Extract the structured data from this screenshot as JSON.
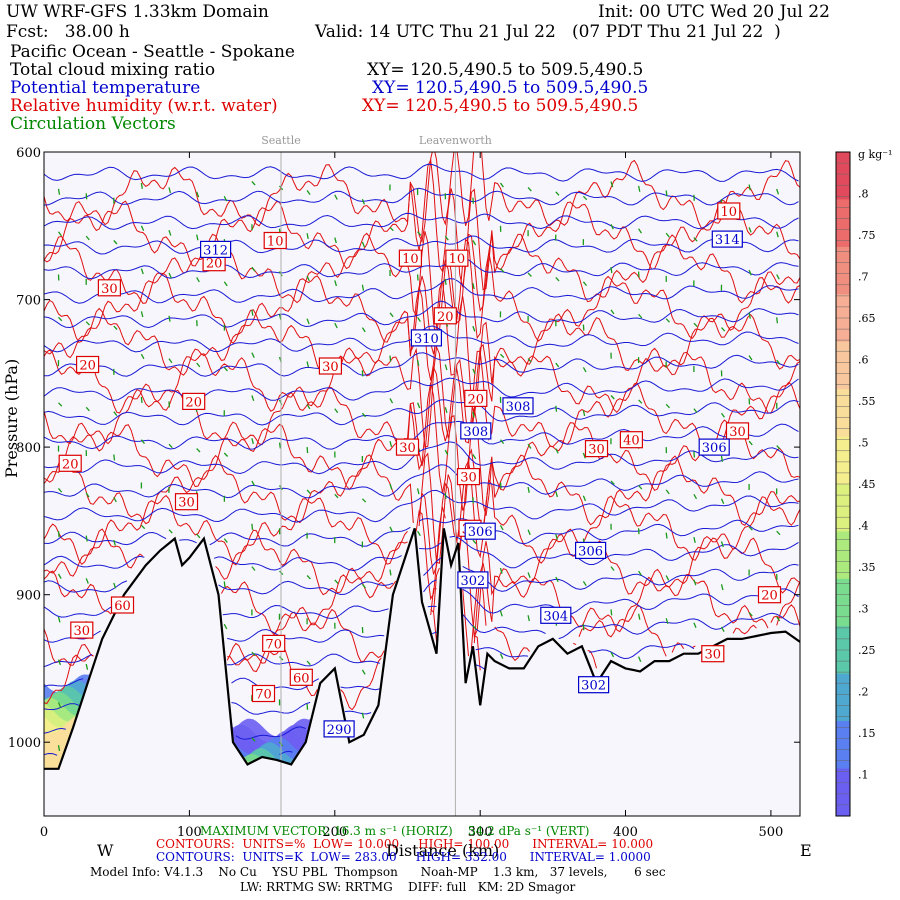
{
  "header": {
    "model_title": "UW WRF-GFS 1.33km Domain",
    "init": "Init: 00 UTC Wed 20 Jul 22",
    "fcst": "Fcst:   38.00 h",
    "valid": "Valid: 14 UTC Thu 21 Jul 22   (07 PDT Thu 21 Jul 22  )",
    "region": "Pacific Ocean - Seattle - Spokane",
    "fields": [
      {
        "name": "Total cloud mixing ratio",
        "xy": "XY= 120.5,490.5 to 509.5,490.5",
        "color": "#000000"
      },
      {
        "name": "Potential temperature",
        "xy": "XY= 120.5,490.5 to 509.5,490.5",
        "color": "#0000cc"
      },
      {
        "name": "Relative humidity (w.r.t. water)",
        "xy": "XY= 120.5,490.5 to 509.5,490.5",
        "color": "#dd0000"
      },
      {
        "name": "Circulation Vectors",
        "xy": "",
        "color": "#008800"
      }
    ]
  },
  "chart_data": {
    "type": "cross-section",
    "xlabel": "Distance (km)",
    "ylabel": "Pressure (hPa)",
    "xlim": [
      0,
      520
    ],
    "ylim": [
      1050,
      600
    ],
    "x_ticks": [
      "0",
      "100",
      "200",
      "300",
      "400",
      "500"
    ],
    "y_ticks": [
      "600",
      "700",
      "800",
      "900",
      "1000"
    ],
    "direction_labels": {
      "west": "W",
      "east": "E"
    },
    "locations": [
      {
        "name": "Seattle",
        "x": 163
      },
      {
        "name": "Leavenworth",
        "x": 283
      }
    ],
    "terrain_pressure": {
      "x": [
        0,
        10,
        20,
        30,
        40,
        55,
        70,
        80,
        90,
        95,
        100,
        110,
        120,
        130,
        140,
        150,
        160,
        170,
        180,
        190,
        200,
        210,
        220,
        230,
        240,
        250,
        255,
        260,
        270,
        275,
        280,
        285,
        290,
        295,
        300,
        305,
        310,
        320,
        330,
        340,
        350,
        360,
        370,
        380,
        390,
        400,
        410,
        420,
        430,
        440,
        450,
        460,
        470,
        480,
        490,
        500,
        510,
        520
      ],
      "p": [
        1018,
        1018,
        990,
        960,
        930,
        900,
        880,
        870,
        862,
        880,
        875,
        862,
        900,
        1000,
        1015,
        1010,
        1012,
        1015,
        1000,
        960,
        950,
        1000,
        995,
        975,
        900,
        870,
        855,
        905,
        940,
        855,
        880,
        865,
        960,
        935,
        975,
        940,
        945,
        950,
        950,
        935,
        930,
        940,
        935,
        960,
        945,
        950,
        952,
        945,
        945,
        940,
        940,
        935,
        930,
        930,
        928,
        926,
        925,
        932
      ]
    },
    "theta_contours": {
      "units": "K",
      "low": "283.00",
      "high": "332.00",
      "interval": "1.0000"
    },
    "theta_labels": [
      {
        "value": "312",
        "x": 118,
        "p": 666
      },
      {
        "value": "314",
        "x": 470,
        "p": 659
      },
      {
        "value": "310",
        "x": 263,
        "p": 726
      },
      {
        "value": "308",
        "x": 326,
        "p": 772
      },
      {
        "value": "308",
        "x": 297,
        "p": 789
      },
      {
        "value": "306",
        "x": 461,
        "p": 800
      },
      {
        "value": "306",
        "x": 300,
        "p": 857
      },
      {
        "value": "306",
        "x": 376,
        "p": 870
      },
      {
        "value": "304",
        "x": 352,
        "p": 914
      },
      {
        "value": "302",
        "x": 295,
        "p": 890
      },
      {
        "value": "302",
        "x": 378,
        "p": 961
      },
      {
        "value": "290",
        "x": 203,
        "p": 991
      }
    ],
    "rh_contours": {
      "units": "%",
      "low": "10.000",
      "high": "100.00",
      "interval": "10.000"
    },
    "rh_labels": [
      {
        "value": "10",
        "x": 159,
        "p": 660
      },
      {
        "value": "10",
        "x": 471,
        "p": 640
      },
      {
        "value": "10",
        "x": 252,
        "p": 672
      },
      {
        "value": "10",
        "x": 284,
        "p": 672
      },
      {
        "value": "20",
        "x": 117,
        "p": 675
      },
      {
        "value": "30",
        "x": 45,
        "p": 692
      },
      {
        "value": "20",
        "x": 276,
        "p": 711
      },
      {
        "value": "20",
        "x": 30,
        "p": 744
      },
      {
        "value": "30",
        "x": 197,
        "p": 745
      },
      {
        "value": "20",
        "x": 103,
        "p": 769
      },
      {
        "value": "20",
        "x": 297,
        "p": 767
      },
      {
        "value": "30",
        "x": 477,
        "p": 789
      },
      {
        "value": "40",
        "x": 404,
        "p": 795
      },
      {
        "value": "30",
        "x": 380,
        "p": 801
      },
      {
        "value": "30",
        "x": 250,
        "p": 800
      },
      {
        "value": "20",
        "x": 18,
        "p": 811
      },
      {
        "value": "30",
        "x": 98,
        "p": 837
      },
      {
        "value": "30",
        "x": 292,
        "p": 820
      },
      {
        "value": "30",
        "x": 293,
        "p": 855
      },
      {
        "value": "20",
        "x": 499,
        "p": 900
      },
      {
        "value": "30",
        "x": 26,
        "p": 924
      },
      {
        "value": "60",
        "x": 54,
        "p": 907
      },
      {
        "value": "70",
        "x": 158,
        "p": 933
      },
      {
        "value": "60",
        "x": 177,
        "p": 956
      },
      {
        "value": "70",
        "x": 151,
        "p": 967
      },
      {
        "value": "30",
        "x": 460,
        "p": 940
      }
    ],
    "cloud_colorbar": {
      "units": "g kg⁻¹",
      "ticks": [
        ".8",
        ".75",
        ".7",
        ".65",
        ".6",
        ".55",
        ".5",
        ".45",
        ".4",
        ".35",
        ".3",
        ".25",
        ".2",
        ".15",
        ".1"
      ],
      "colors": [
        "#e14a5c",
        "#ec6c6c",
        "#f08f80",
        "#f6ae94",
        "#f8c79d",
        "#f9dd9a",
        "#f5ee8e",
        "#dbf07e",
        "#acea7e",
        "#79dc8e",
        "#5bc8aa",
        "#4fa8cf",
        "#5a7ff0",
        "#6b5ff2"
      ]
    },
    "max_vector": {
      "horiz": "16.3 m s⁻¹ (HORIZ)",
      "vert": "54.2 dPa s⁻¹ (VERT)"
    }
  },
  "footer": {
    "max_vector_label": "MAXIMUM VECTOR:",
    "rh_line": {
      "label": "CONTOURS:  UNITS=%  LOW=",
      "low": "10.000",
      "high_label": "HIGH=",
      "high": "100.00",
      "int_label": "INTERVAL=",
      "interval": "10.000"
    },
    "theta_line": {
      "label": "CONTOURS:  UNITS=K  LOW=",
      "low": "283.00",
      "high_label": "HIGH=",
      "high": "332.00",
      "int_label": "INTERVAL=",
      "interval": "1.0000"
    },
    "model_info": "Model Info: V4.1.3    No Cu    YSU PBL  Thompson      Noah-MP    1.3 km,   37 levels,       6 sec",
    "model_info2": "LW: RRTMG SW: RRTMG    DIFF: full   KM: 2D Smagor",
    "distance_label": "Distance (km)"
  }
}
